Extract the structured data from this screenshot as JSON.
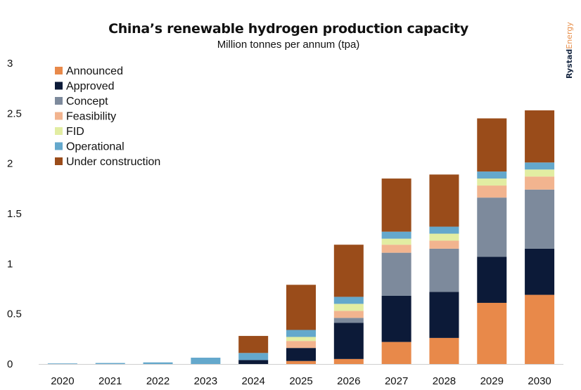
{
  "title": "China’s renewable hydrogen production capacity",
  "subtitle": "Million tonnes per annum (tpa)",
  "brand": {
    "part1": "Rystad",
    "part2": "Energy"
  },
  "colors": {
    "Announced": "#e8894a",
    "Approved": "#0c1a38",
    "Concept": "#7d8a9c",
    "Feasibility": "#f2b48f",
    "FID": "#e2eda2",
    "Operational": "#64a8cc",
    "Under construction": "#9a4c1a"
  },
  "chart_data": {
    "type": "bar",
    "stacked": true,
    "title": "China’s renewable hydrogen production capacity",
    "subtitle": "Million tonnes per annum (tpa)",
    "xlabel": "",
    "ylabel": "",
    "ylim": [
      0,
      3
    ],
    "yticks": [
      "0",
      "0.5",
      "1",
      "1.5",
      "2",
      "2.5",
      "3"
    ],
    "ytick_values": [
      0,
      0.5,
      1,
      1.5,
      2,
      2.5,
      3
    ],
    "legend_position": "top-left",
    "categories": [
      "2020",
      "2021",
      "2022",
      "2023",
      "2024",
      "2025",
      "2026",
      "2027",
      "2028",
      "2029",
      "2030"
    ],
    "series": [
      {
        "name": "Announced",
        "values": [
          0,
          0,
          0,
          0,
          0,
          0.03,
          0.05,
          0.22,
          0.26,
          0.61,
          0.69
        ]
      },
      {
        "name": "Approved",
        "values": [
          0,
          0,
          0,
          0,
          0.04,
          0.13,
          0.36,
          0.46,
          0.46,
          0.46,
          0.46
        ]
      },
      {
        "name": "Concept",
        "values": [
          0,
          0,
          0,
          0,
          0,
          0,
          0.05,
          0.43,
          0.43,
          0.59,
          0.59
        ]
      },
      {
        "name": "Feasibility",
        "values": [
          0,
          0,
          0,
          0,
          0,
          0.07,
          0.07,
          0.08,
          0.08,
          0.12,
          0.13
        ]
      },
      {
        "name": "FID",
        "values": [
          0,
          0,
          0,
          0,
          0,
          0.04,
          0.07,
          0.06,
          0.07,
          0.07,
          0.07
        ]
      },
      {
        "name": "Operational",
        "values": [
          0.002,
          0.01,
          0.016,
          0.063,
          0.07,
          0.07,
          0.07,
          0.07,
          0.07,
          0.07,
          0.07
        ]
      },
      {
        "name": "Under construction",
        "values": [
          0,
          0,
          0,
          0,
          0.17,
          0.45,
          0.52,
          0.53,
          0.52,
          0.53,
          0.52
        ]
      }
    ]
  }
}
